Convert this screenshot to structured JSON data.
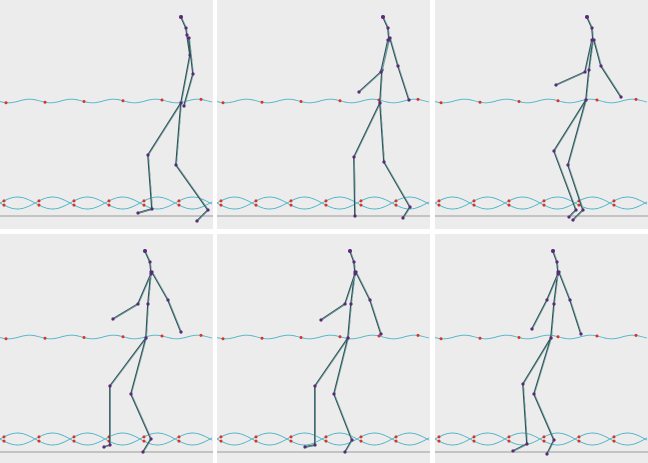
{
  "colors": {
    "background": "#ffffff",
    "panel": "#ececec",
    "bone": "#2f4f52",
    "joint": "#5a2a78",
    "curve": "#49b3c8",
    "keyframe": "#d4362c",
    "ground": "#9a9a9a"
  },
  "panels": [
    {
      "pose": "walk-stride-arms-down"
    },
    {
      "pose": "walk-stride-arm-forward"
    },
    {
      "pose": "knees-bent-arm-forward"
    },
    {
      "pose": "crouch-arm-forward"
    },
    {
      "pose": "crouch-arm-forward-2"
    },
    {
      "pose": "crouch-arm-forward-3"
    }
  ]
}
